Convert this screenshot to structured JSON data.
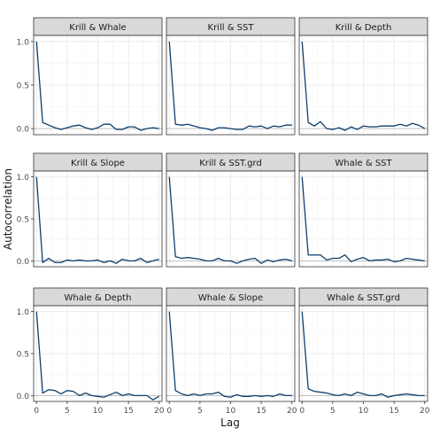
{
  "figure": {
    "ylabel": "Autocorrelation",
    "xlabel": "Lag"
  },
  "colors": {
    "line": "#0d3f6e",
    "strip_bg": "#d9d9d9",
    "panel_border": "#333333",
    "grid": "#ebebeb",
    "zero_line": "#b3b3b3"
  },
  "chart_data": [
    {
      "type": "line",
      "title": "Krill & Whale",
      "x": [
        0,
        1,
        2,
        3,
        4,
        5,
        6,
        7,
        8,
        9,
        10,
        11,
        12,
        13,
        14,
        15,
        16,
        17,
        18,
        19,
        20
      ],
      "y": [
        1.0,
        0.07,
        0.04,
        0.01,
        -0.01,
        0.01,
        0.03,
        0.04,
        0.01,
        -0.01,
        0.01,
        0.05,
        0.05,
        -0.01,
        -0.01,
        0.02,
        0.02,
        -0.02,
        0.0,
        0.01,
        0.0
      ],
      "xlim": [
        0,
        20
      ],
      "ylim": [
        -0.07,
        1.07
      ],
      "xticks": [
        "0",
        "5",
        "10",
        "15",
        "20"
      ],
      "yticks": [
        "0.0",
        "0.5",
        "1.0"
      ]
    },
    {
      "type": "line",
      "title": "Krill & SST",
      "x": [
        0,
        1,
        2,
        3,
        4,
        5,
        6,
        7,
        8,
        9,
        10,
        11,
        12,
        13,
        14,
        15,
        16,
        17,
        18,
        19,
        20
      ],
      "y": [
        1.0,
        0.05,
        0.04,
        0.05,
        0.03,
        0.01,
        0.0,
        -0.02,
        0.01,
        0.01,
        0.0,
        -0.01,
        -0.01,
        0.03,
        0.02,
        0.03,
        0.0,
        0.03,
        0.02,
        0.04,
        0.04
      ],
      "xlim": [
        0,
        20
      ],
      "ylim": [
        -0.07,
        1.07
      ],
      "xticks": [
        "0",
        "5",
        "10",
        "15",
        "20"
      ],
      "yticks": [
        "0.0",
        "0.5",
        "1.0"
      ]
    },
    {
      "type": "line",
      "title": "Krill & Depth",
      "x": [
        0,
        1,
        2,
        3,
        4,
        5,
        6,
        7,
        8,
        9,
        10,
        11,
        12,
        13,
        14,
        15,
        16,
        17,
        18,
        19,
        20
      ],
      "y": [
        1.0,
        0.07,
        0.03,
        0.08,
        0.0,
        -0.01,
        0.01,
        -0.02,
        0.02,
        -0.01,
        0.03,
        0.02,
        0.02,
        0.03,
        0.03,
        0.03,
        0.05,
        0.03,
        0.06,
        0.04,
        0.0
      ],
      "xlim": [
        0,
        20
      ],
      "ylim": [
        -0.07,
        1.07
      ],
      "xticks": [
        "0",
        "5",
        "10",
        "15",
        "20"
      ],
      "yticks": [
        "0.0",
        "0.5",
        "1.0"
      ]
    },
    {
      "type": "line",
      "title": "Krill & Slope",
      "x": [
        0,
        1,
        2,
        3,
        4,
        5,
        6,
        7,
        8,
        9,
        10,
        11,
        12,
        13,
        14,
        15,
        16,
        17,
        18,
        19,
        20
      ],
      "y": [
        1.0,
        -0.02,
        0.03,
        -0.02,
        -0.02,
        0.01,
        0.0,
        0.01,
        0.0,
        0.0,
        0.01,
        -0.02,
        0.0,
        -0.03,
        0.02,
        0.0,
        0.0,
        0.03,
        -0.02,
        0.0,
        0.02
      ],
      "xlim": [
        0,
        20
      ],
      "ylim": [
        -0.07,
        1.07
      ],
      "xticks": [
        "0",
        "5",
        "10",
        "15",
        "20"
      ],
      "yticks": [
        "0.0",
        "0.5",
        "1.0"
      ]
    },
    {
      "type": "line",
      "title": "Krill & SST.grd",
      "x": [
        0,
        1,
        2,
        3,
        4,
        5,
        6,
        7,
        8,
        9,
        10,
        11,
        12,
        13,
        14,
        15,
        16,
        17,
        18,
        19,
        20
      ],
      "y": [
        1.0,
        0.05,
        0.03,
        0.04,
        0.03,
        0.02,
        0.0,
        0.0,
        0.03,
        0.0,
        0.0,
        -0.03,
        0.0,
        0.02,
        0.03,
        -0.03,
        0.01,
        -0.01,
        0.01,
        0.02,
        0.0
      ],
      "xlim": [
        0,
        20
      ],
      "ylim": [
        -0.07,
        1.07
      ],
      "xticks": [
        "0",
        "5",
        "10",
        "15",
        "20"
      ],
      "yticks": [
        "0.0",
        "0.5",
        "1.0"
      ]
    },
    {
      "type": "line",
      "title": "Whale & SST",
      "x": [
        0,
        1,
        2,
        3,
        4,
        5,
        6,
        7,
        8,
        9,
        10,
        11,
        12,
        13,
        14,
        15,
        16,
        17,
        18,
        19,
        20
      ],
      "y": [
        1.0,
        0.07,
        0.07,
        0.07,
        0.01,
        0.03,
        0.03,
        0.07,
        -0.01,
        0.02,
        0.04,
        0.0,
        0.01,
        0.01,
        0.02,
        -0.01,
        0.0,
        0.03,
        0.02,
        0.01,
        0.0
      ],
      "xlim": [
        0,
        20
      ],
      "ylim": [
        -0.07,
        1.07
      ],
      "xticks": [
        "0",
        "5",
        "10",
        "15",
        "20"
      ],
      "yticks": [
        "0.0",
        "0.5",
        "1.0"
      ]
    },
    {
      "type": "line",
      "title": "Whale & Depth",
      "x": [
        0,
        1,
        2,
        3,
        4,
        5,
        6,
        7,
        8,
        9,
        10,
        11,
        12,
        13,
        14,
        15,
        16,
        17,
        18,
        19,
        20
      ],
      "y": [
        1.0,
        0.03,
        0.07,
        0.06,
        0.02,
        0.06,
        0.05,
        0.0,
        0.03,
        0.0,
        -0.01,
        -0.02,
        0.01,
        0.04,
        0.0,
        0.02,
        0.0,
        0.0,
        0.0,
        -0.05,
        -0.01
      ],
      "xlim": [
        0,
        20
      ],
      "ylim": [
        -0.07,
        1.07
      ],
      "xticks": [
        "0",
        "5",
        "10",
        "15",
        "20"
      ],
      "yticks": [
        "0.0",
        "0.5",
        "1.0"
      ]
    },
    {
      "type": "line",
      "title": "Whale & Slope",
      "x": [
        0,
        1,
        2,
        3,
        4,
        5,
        6,
        7,
        8,
        9,
        10,
        11,
        12,
        13,
        14,
        15,
        16,
        17,
        18,
        19,
        20
      ],
      "y": [
        1.0,
        0.06,
        0.02,
        0.0,
        0.02,
        0.0,
        0.02,
        0.02,
        0.04,
        -0.01,
        -0.02,
        0.01,
        -0.01,
        -0.01,
        0.0,
        -0.01,
        0.0,
        -0.01,
        0.02,
        0.0,
        0.0
      ],
      "xlim": [
        0,
        20
      ],
      "ylim": [
        -0.07,
        1.07
      ],
      "xticks": [
        "0",
        "5",
        "10",
        "15",
        "20"
      ],
      "yticks": [
        "0.0",
        "0.5",
        "1.0"
      ]
    },
    {
      "type": "line",
      "title": "Whale & SST.grd",
      "x": [
        0,
        1,
        2,
        3,
        4,
        5,
        6,
        7,
        8,
        9,
        10,
        11,
        12,
        13,
        14,
        15,
        16,
        17,
        18,
        19,
        20
      ],
      "y": [
        1.0,
        0.08,
        0.05,
        0.04,
        0.03,
        0.01,
        0.0,
        0.02,
        0.0,
        0.04,
        0.02,
        0.0,
        0.0,
        0.02,
        -0.02,
        0.0,
        0.01,
        0.02,
        0.01,
        0.0,
        0.0
      ],
      "xlim": [
        0,
        20
      ],
      "ylim": [
        -0.07,
        1.07
      ],
      "xticks": [
        "0",
        "5",
        "10",
        "15",
        "20"
      ],
      "yticks": [
        "0.0",
        "0.5",
        "1.0"
      ]
    }
  ]
}
